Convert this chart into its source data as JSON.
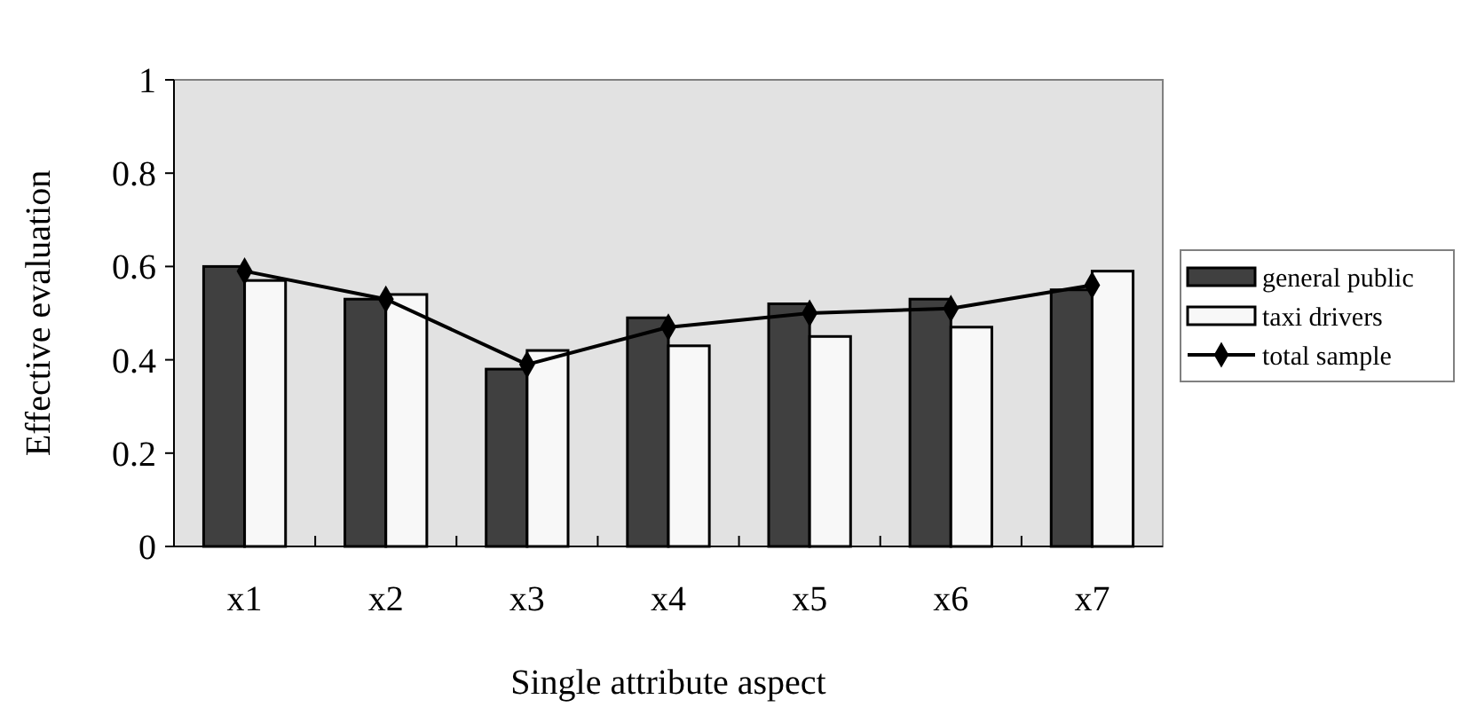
{
  "chart_data": {
    "type": "bar",
    "xlabel": "Single attribute aspect",
    "ylabel": "Effective evaluation",
    "categories": [
      "x1",
      "x2",
      "x3",
      "x4",
      "x5",
      "x6",
      "x7"
    ],
    "series": [
      {
        "name": "general public",
        "color": "#404040",
        "values": [
          0.6,
          0.53,
          0.38,
          0.49,
          0.52,
          0.53,
          0.55
        ]
      },
      {
        "name": "taxi drivers",
        "color": "#f8f8f8",
        "values": [
          0.57,
          0.54,
          0.42,
          0.43,
          0.45,
          0.47,
          0.59
        ]
      },
      {
        "name": "total sample",
        "type": "line",
        "color": "#000000",
        "marker": "diamond",
        "values": [
          0.59,
          0.53,
          0.39,
          0.47,
          0.5,
          0.51,
          0.56
        ]
      }
    ],
    "ylim": [
      0,
      1
    ],
    "yticks": [
      0,
      {
        "value": 0.2,
        "label": "0.2"
      },
      {
        "value": 0.4,
        "label": "0.4"
      },
      {
        "value": 0.6,
        "label": "0.6"
      },
      {
        "value": 0.8,
        "label": "0.8"
      },
      1
    ],
    "grid": false,
    "legend": "right"
  }
}
